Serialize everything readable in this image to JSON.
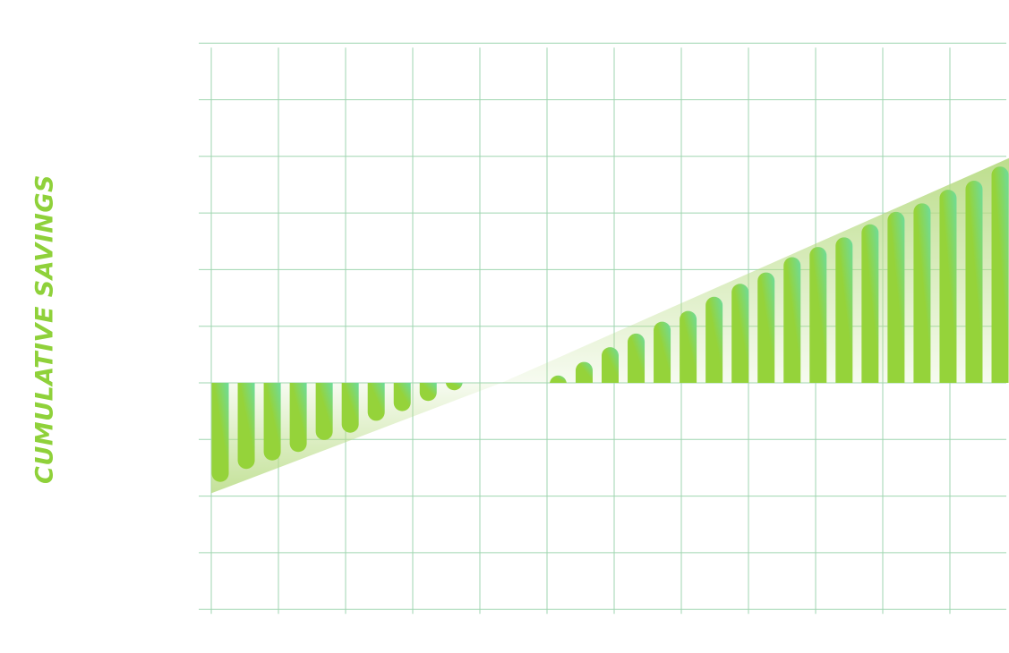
{
  "chart_data": {
    "type": "bar",
    "ylabel": "CUMULATIVE SAVINGS",
    "grid": true,
    "ylim": [
      -4,
      6
    ],
    "values": [
      -1.75,
      -1.52,
      -1.37,
      -1.22,
      -1.01,
      -0.88,
      -0.67,
      -0.5,
      -0.32,
      -0.13,
      0,
      0,
      0,
      0.13,
      0.37,
      0.63,
      0.87,
      1.08,
      1.27,
      1.52,
      1.75,
      1.95,
      2.22,
      2.4,
      2.57,
      2.8,
      3.02,
      3.17,
      3.41,
      3.57,
      3.82
    ]
  },
  "colors": {
    "bar": "#95d33a",
    "bar_highlight": "#6ddc9c",
    "grid": "#9fd6b0",
    "band": "#c2df98",
    "label": "#8fd13a"
  }
}
